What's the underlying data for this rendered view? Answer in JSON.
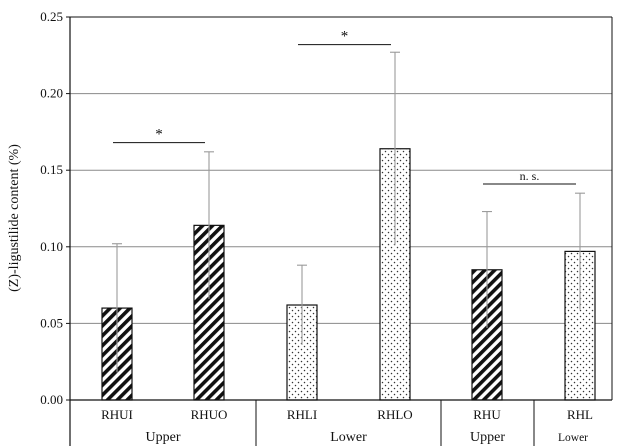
{
  "chart_data": {
    "type": "bar",
    "title": "",
    "xlabel": "",
    "ylabel": "(Z)-ligustilide content (%)",
    "ylim": [
      0,
      0.25
    ],
    "yticks": [
      "0.00",
      "0.05",
      "0.10",
      "0.15",
      "0.20",
      "0.25"
    ],
    "grid": true,
    "categories": [
      "RHUI",
      "RHUO",
      "RHLI",
      "RHLO",
      "RHU",
      "RHL"
    ],
    "values": [
      0.06,
      0.114,
      0.062,
      0.164,
      0.085,
      0.097
    ],
    "errors": [
      0.042,
      0.048,
      0.026,
      0.063,
      0.038,
      0.038
    ],
    "patterns": [
      "hatch",
      "hatch",
      "dots",
      "dots",
      "hatch",
      "dots"
    ],
    "groups": [
      {
        "label": "Upper",
        "from": 0,
        "to": 1
      },
      {
        "label": "Lower",
        "from": 2,
        "to": 3
      },
      {
        "label": "Upper",
        "from": 4,
        "to": 4
      },
      {
        "label": "Lower",
        "from": 5,
        "to": 5
      }
    ],
    "significance": [
      {
        "from": 0,
        "to": 1,
        "label": "*",
        "y": 0.168
      },
      {
        "from": 2,
        "to": 3,
        "label": "*",
        "y": 0.232
      },
      {
        "from": 4,
        "to": 5,
        "label": "n. s.",
        "y": 0.141
      }
    ]
  }
}
